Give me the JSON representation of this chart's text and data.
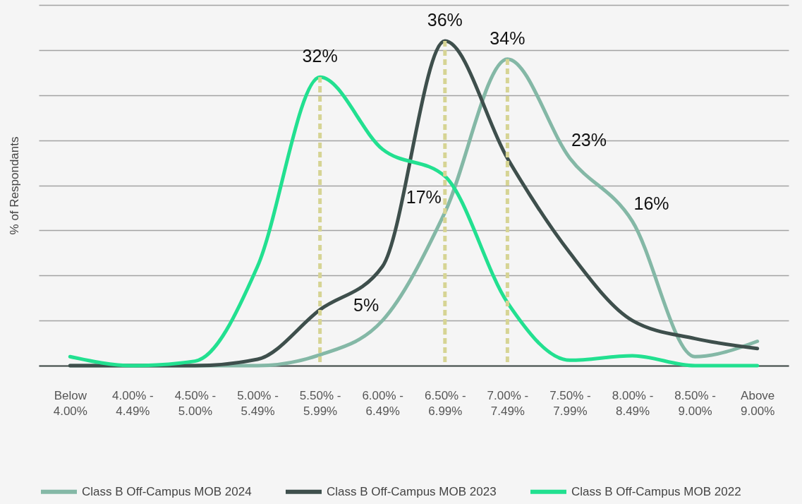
{
  "chart_data": {
    "type": "line",
    "ylabel": "% of Respondants",
    "categories": [
      "Below 4.00%",
      "4.00% - 4.49%",
      "4.50% - 5.00%",
      "5.00% - 5.49%",
      "5.50% - 5.99%",
      "6.00% - 6.49%",
      "6.50% - 6.99%",
      "7.00% - 7.49%",
      "7.50% - 7.99%",
      "8.00% - 8.49%",
      "8.50% - 9.00%",
      "Above 9.00%"
    ],
    "ylim": [
      0,
      40
    ],
    "yticks": [
      {
        "value": 0,
        "label": null
      },
      {
        "value": 5,
        "label": null
      },
      {
        "value": 10,
        "label": null
      },
      {
        "value": 15,
        "label": null
      },
      {
        "value": 20,
        "label": null
      },
      {
        "value": 25,
        "label": null
      },
      {
        "value": 30,
        "label": null
      },
      {
        "value": 35,
        "label": null
      },
      {
        "value": 40,
        "label": null
      }
    ],
    "grid": "y",
    "tick_labels": "x",
    "legend": "bottom",
    "series": [
      {
        "name": "Class B Off-Campus MOB 2024",
        "color": "#84b8a6",
        "values": [
          0,
          0,
          0,
          0,
          1.2,
          5,
          17,
          34,
          23,
          16,
          1,
          2.7
        ],
        "value_labels": [
          null,
          null,
          null,
          null,
          null,
          "5%",
          "17%",
          "34%",
          "23%",
          "16%",
          null,
          null
        ]
      },
      {
        "name": "Class B Off-Campus MOB 2023",
        "color": "#3e4f4c",
        "values": [
          0,
          0,
          0,
          0.7,
          6.2,
          11,
          36,
          23,
          12.5,
          5,
          3,
          1.9
        ],
        "value_labels": [
          null,
          null,
          null,
          null,
          null,
          null,
          "36%",
          null,
          null,
          null,
          null,
          null
        ]
      },
      {
        "name": "Class B Off-Campus MOB 2022",
        "color": "#22e090",
        "values": [
          1,
          0,
          0.5,
          11,
          32,
          24,
          21,
          7,
          0.6,
          1.1,
          0,
          0
        ],
        "value_labels": [
          null,
          null,
          null,
          null,
          "32%",
          null,
          null,
          null,
          null,
          null,
          null,
          null
        ]
      },
      {
        "type": "bar",
        "color": "#d6d494",
        "line_style": "dashed",
        "values": [
          null,
          null,
          null,
          null,
          32,
          null,
          36,
          34,
          null,
          null,
          null,
          null
        ]
      }
    ]
  }
}
